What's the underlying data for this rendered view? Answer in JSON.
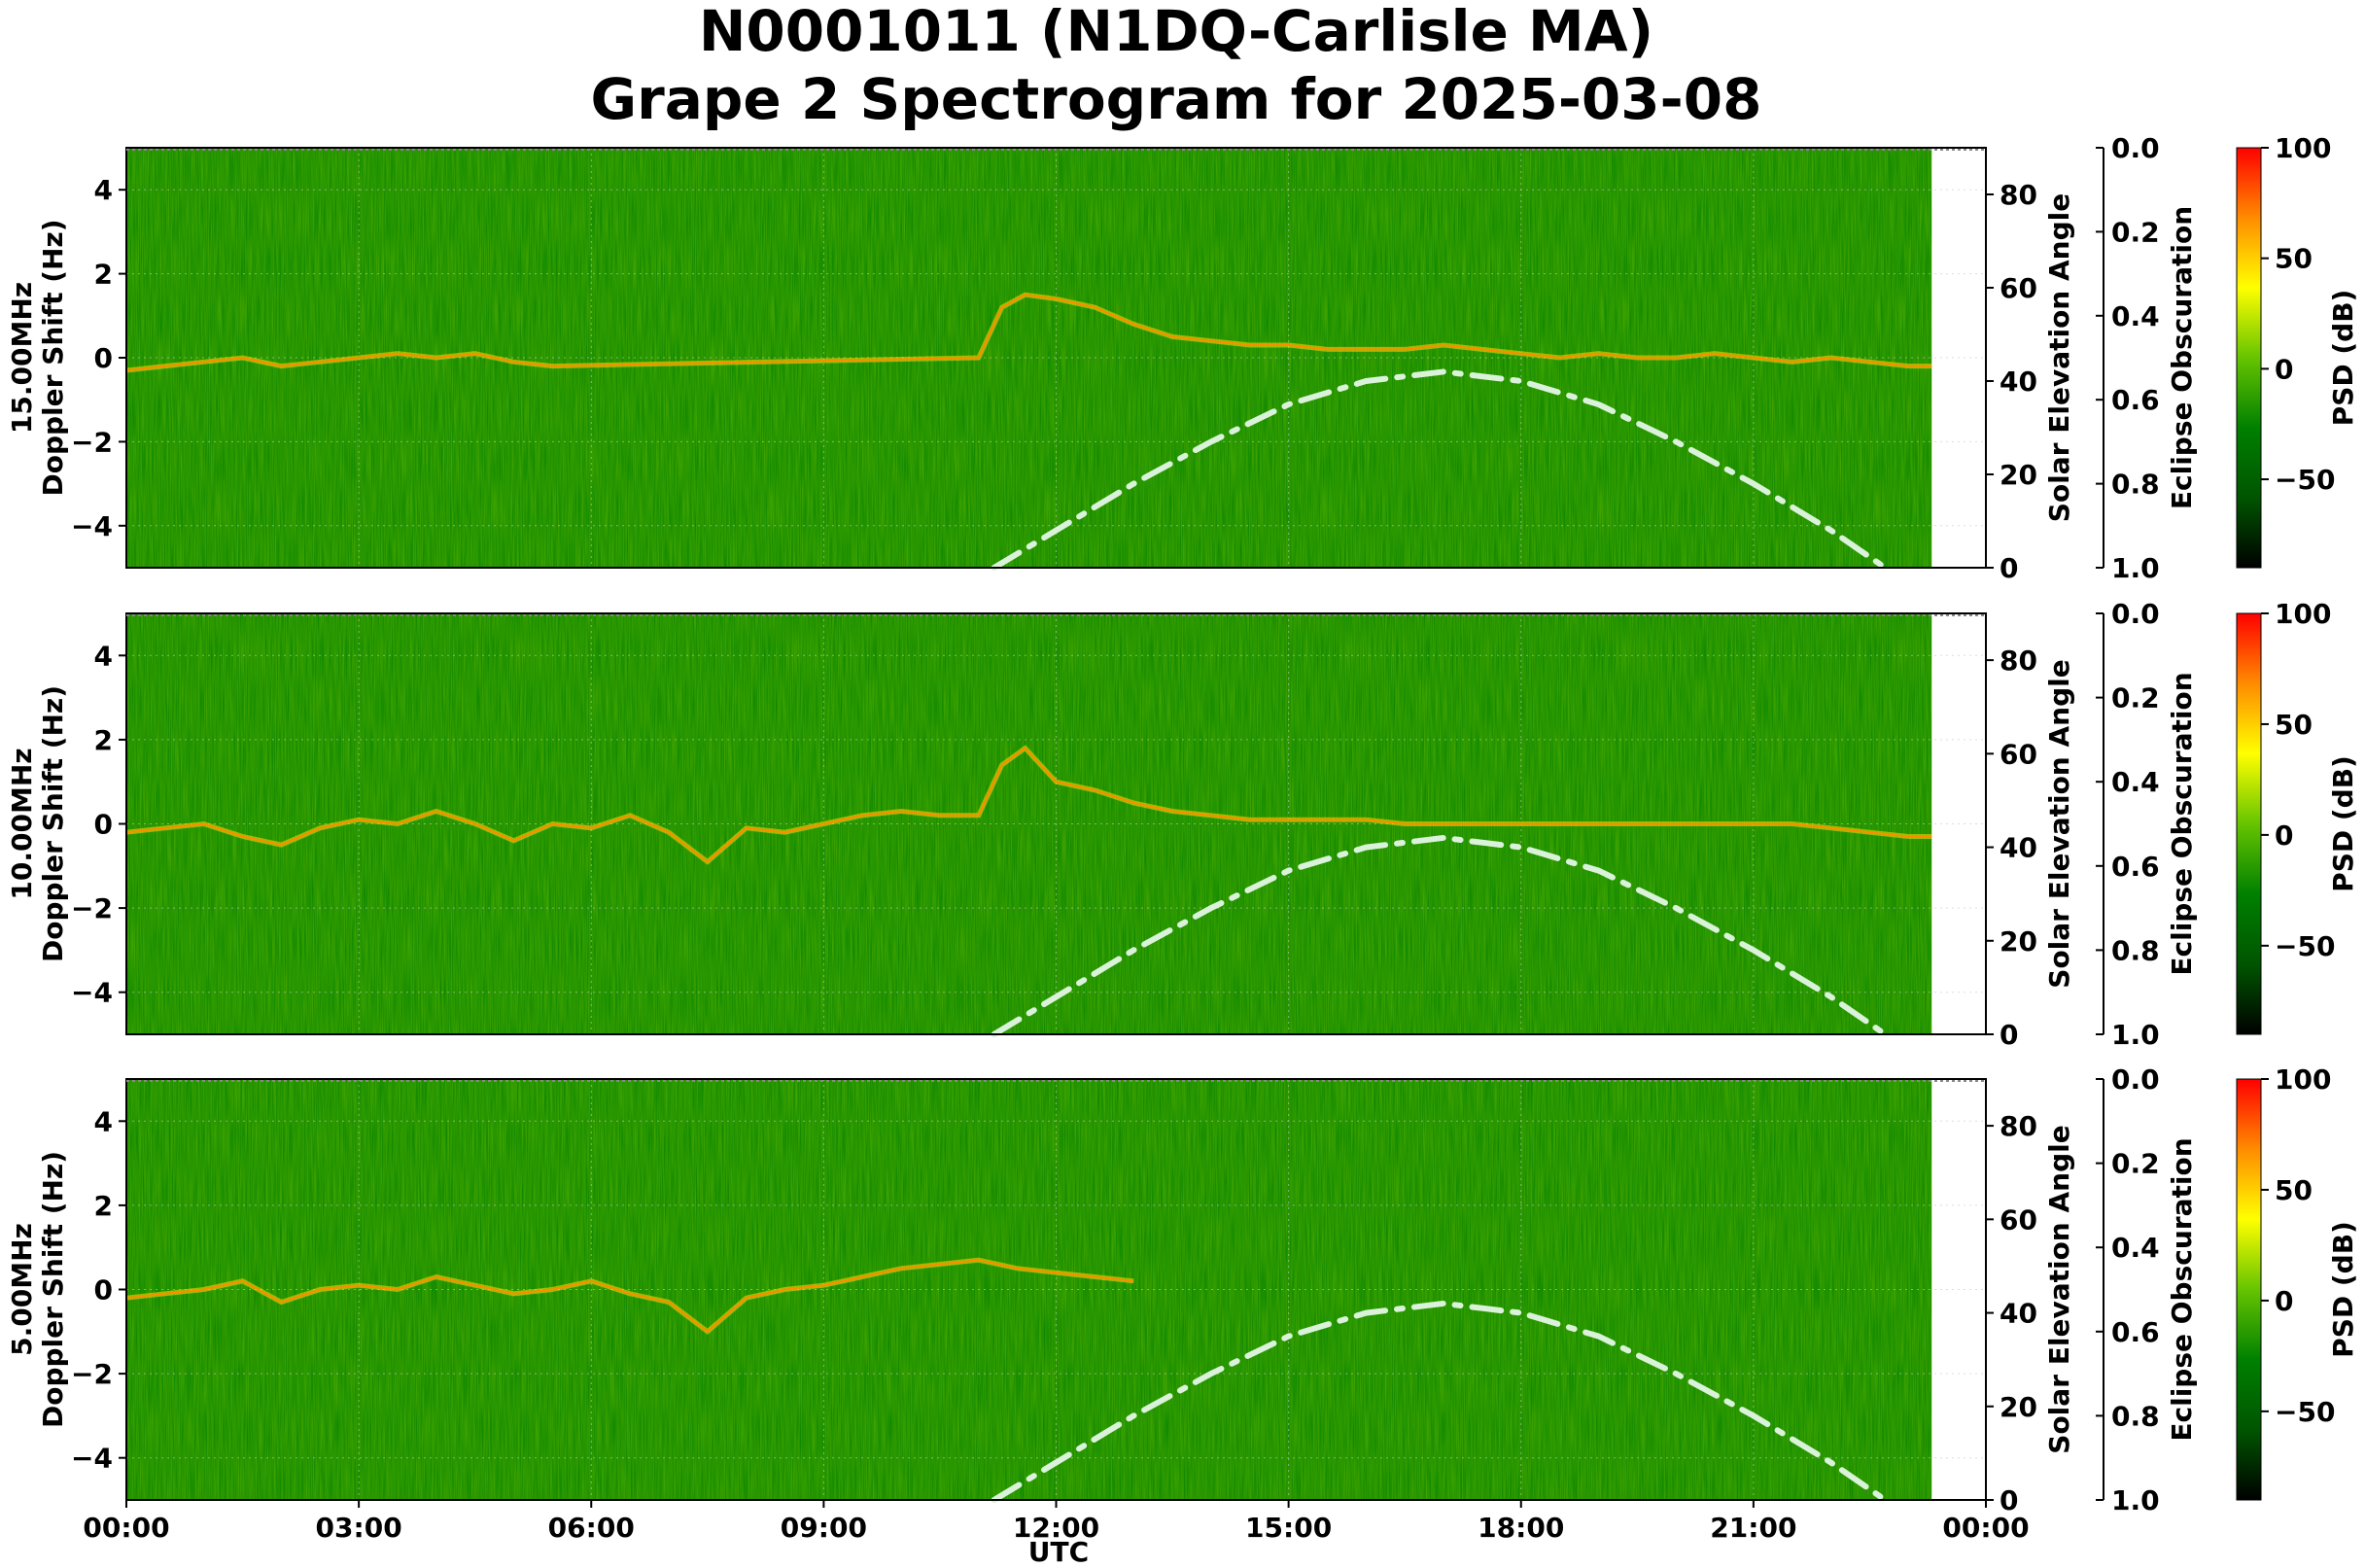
{
  "title_line1": "N0001011 (N1DQ-Carlisle MA)",
  "title_line2": "Grape 2 Spectrogram for 2025-03-08",
  "colors": {
    "colormap": [
      "#000000",
      "#005500",
      "#008000",
      "#66c400",
      "#ffff00",
      "#ff8c00",
      "#ff0000"
    ],
    "spectrum_background": "#008000",
    "elevation_curve": "#d9f2d9",
    "grid": "#c8c8c8"
  },
  "chart_data": {
    "type": "heatmap",
    "xlabel": "UTC",
    "x_ticks": [
      "00:00",
      "03:00",
      "06:00",
      "09:00",
      "12:00",
      "15:00",
      "18:00",
      "21:00",
      "00:00"
    ],
    "x_range_hours": [
      0,
      24
    ],
    "data_end_hour": 23.3,
    "y_range_hz": [
      -5,
      5
    ],
    "y_ticks": [
      -4,
      -2,
      0,
      2,
      4
    ],
    "right_axis_label": "Solar Elevation Angle",
    "right_axis_ticks": [
      0,
      20,
      40,
      60,
      80
    ],
    "right_axis_range": [
      0,
      90
    ],
    "eclipse_axis_label": "Eclipse Obscuration",
    "eclipse_ticks": [
      "0.0",
      "0.2",
      "0.4",
      "0.6",
      "0.8",
      "1.0"
    ],
    "colorbar_label": "PSD (dB)",
    "colorbar_ticks": [
      "100",
      "50",
      "0",
      "−50"
    ],
    "colorbar_range_db": [
      -90,
      100
    ],
    "solar_elevation": {
      "hours": [
        11.2,
        12,
        13,
        14,
        15,
        16,
        17,
        18,
        19,
        20,
        21,
        22,
        22.7
      ],
      "degrees": [
        0,
        8,
        18,
        27,
        35,
        40,
        42,
        40,
        35,
        27,
        18,
        8,
        0
      ]
    },
    "panels": [
      {
        "label_line1": "15.00MHz",
        "label_line2": "Doppler Shift (Hz)",
        "trace_hours": [
          0,
          0.5,
          1,
          1.5,
          2,
          2.5,
          3,
          3.5,
          4,
          4.5,
          5,
          5.5,
          11.0,
          11.3,
          11.6,
          12,
          12.5,
          13,
          13.5,
          14,
          14.5,
          15,
          15.5,
          16,
          16.5,
          17,
          17.5,
          18,
          18.5,
          19,
          19.5,
          20,
          20.5,
          21,
          21.5,
          22,
          22.5,
          23,
          23.3
        ],
        "trace_hz": [
          -0.3,
          -0.2,
          -0.1,
          0.0,
          -0.2,
          -0.1,
          0.0,
          0.1,
          0.0,
          0.1,
          -0.1,
          -0.2,
          0.0,
          1.2,
          1.5,
          1.4,
          1.2,
          0.8,
          0.5,
          0.4,
          0.3,
          0.3,
          0.2,
          0.2,
          0.2,
          0.3,
          0.2,
          0.1,
          0.0,
          0.1,
          0.0,
          0.0,
          0.1,
          0.0,
          -0.1,
          0.0,
          -0.1,
          -0.2,
          -0.2
        ]
      },
      {
        "label_line1": "10.00MHz",
        "label_line2": "Doppler Shift (Hz)",
        "trace_hours": [
          0,
          0.5,
          1,
          1.5,
          2,
          2.5,
          3,
          3.5,
          4,
          4.5,
          5,
          5.5,
          6,
          6.5,
          7,
          7.5,
          8,
          8.5,
          9,
          9.5,
          10,
          10.5,
          11,
          11.3,
          11.6,
          12,
          12.5,
          13,
          13.5,
          14,
          14.5,
          15,
          15.5,
          16,
          16.5,
          17,
          17.5,
          18,
          18.5,
          19,
          19.5,
          20,
          20.5,
          21,
          21.5,
          22,
          22.5,
          23,
          23.3
        ],
        "trace_hz": [
          -0.2,
          -0.1,
          0.0,
          -0.3,
          -0.5,
          -0.1,
          0.1,
          0.0,
          0.3,
          0.0,
          -0.4,
          0.0,
          -0.1,
          0.2,
          -0.2,
          -0.9,
          -0.1,
          -0.2,
          0.0,
          0.2,
          0.3,
          0.2,
          0.2,
          1.4,
          1.8,
          1.0,
          0.8,
          0.5,
          0.3,
          0.2,
          0.1,
          0.1,
          0.1,
          0.1,
          0.0,
          0.0,
          0.0,
          0.0,
          0.0,
          0.0,
          0.0,
          0.0,
          0.0,
          0.0,
          0.0,
          -0.1,
          -0.2,
          -0.3,
          -0.3
        ]
      },
      {
        "label_line1": "5.00MHz",
        "label_line2": "Doppler Shift (Hz)",
        "trace_hours": [
          0,
          0.5,
          1,
          1.5,
          2,
          2.5,
          3,
          3.5,
          4,
          4.5,
          5,
          5.5,
          6,
          6.5,
          7,
          7.5,
          8,
          8.5,
          9,
          9.5,
          10,
          10.5,
          11,
          11.5,
          12,
          12.5,
          13
        ],
        "trace_hz": [
          -0.2,
          -0.1,
          0.0,
          0.2,
          -0.3,
          0.0,
          0.1,
          0.0,
          0.3,
          0.1,
          -0.1,
          0.0,
          0.2,
          -0.1,
          -0.3,
          -1.0,
          -0.2,
          0.0,
          0.1,
          0.3,
          0.5,
          0.6,
          0.7,
          0.5,
          0.4,
          0.3,
          0.2
        ]
      }
    ]
  }
}
